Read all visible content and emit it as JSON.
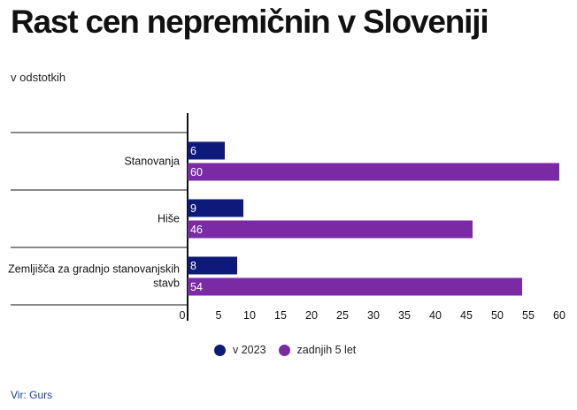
{
  "header": {
    "title": "Rast cen nepremičnin v Sloveniji",
    "subtitle": "v odstotkih"
  },
  "footer": {
    "source": "Vir: Gurs"
  },
  "colors": {
    "v2023": "#0d1a7a",
    "zadnjih5": "#7b2aa6"
  },
  "chart_data": {
    "type": "bar",
    "orientation": "horizontal",
    "categories": [
      "Stanovanja",
      "Hiše",
      "Zemljišča za gradnjo stanovanjskih stavb"
    ],
    "category_lines": [
      [
        "Stanovanja"
      ],
      [
        "Hiše"
      ],
      [
        "Zemljišča za gradnjo stanovanjskih",
        "stavb"
      ]
    ],
    "series": [
      {
        "name": "v 2023",
        "color": "#0d1a7a",
        "values": [
          6,
          9,
          8
        ]
      },
      {
        "name": "zadnjih 5 let",
        "color": "#7b2aa6",
        "values": [
          60,
          46,
          54
        ]
      }
    ],
    "xlim": [
      0,
      60
    ],
    "xticks": [
      0,
      5,
      10,
      15,
      20,
      25,
      30,
      35,
      40,
      45,
      50,
      55,
      60
    ],
    "legend_position": "bottom",
    "grid": false
  }
}
